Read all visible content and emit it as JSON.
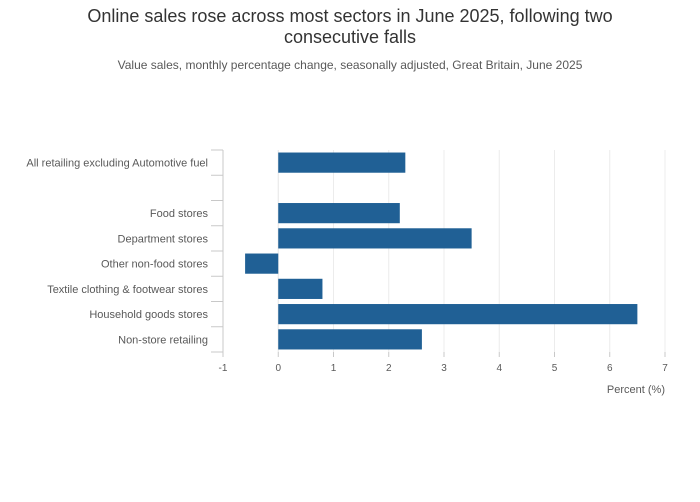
{
  "chart_data": {
    "type": "bar",
    "orientation": "horizontal",
    "title_line1": "Online sales rose across most sectors in June 2025, following two",
    "title_line2": "consecutive falls",
    "subtitle": "Value sales, monthly percentage change, seasonally adjusted, Great Britain, June 2025",
    "xlabel": "Percent (%)",
    "ylabel": "",
    "xlim": [
      -1,
      7
    ],
    "xticks": [
      -1,
      0,
      1,
      2,
      3,
      4,
      5,
      6,
      7
    ],
    "categories": [
      "All retailing excluding Automotive fuel",
      "",
      "Food stores",
      "Department stores",
      "Other non-food stores",
      "Textile clothing & footwear stores",
      "Household goods stores",
      "Non-store retailing"
    ],
    "values": [
      2.3,
      null,
      2.2,
      3.5,
      -0.6,
      0.8,
      6.5,
      2.6
    ],
    "bar_color": "#206095",
    "grid": "vertical",
    "legend": "none"
  }
}
